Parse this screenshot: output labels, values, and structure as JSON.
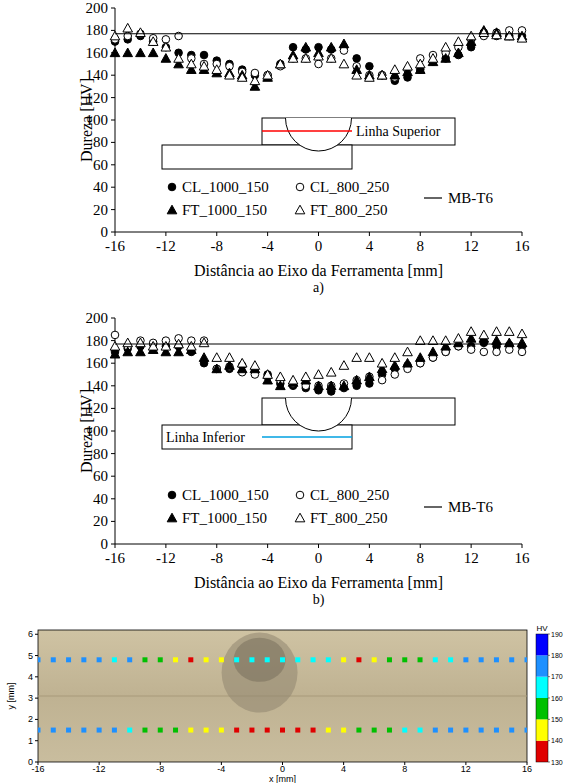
{
  "chart_data": [
    {
      "type": "scatter",
      "panel_label": "a)",
      "inset_label": "Linha Superior",
      "x_label": "Distância ao Eixo da Ferramenta [mm]",
      "y_label": "Dureza [HV]",
      "xlim": [
        -16,
        16
      ],
      "ylim": [
        0,
        200
      ],
      "xticks": [
        -16,
        -12,
        -8,
        -4,
        0,
        4,
        8,
        12,
        16
      ],
      "yticks": [
        0,
        20,
        40,
        60,
        80,
        100,
        120,
        140,
        160,
        180,
        200
      ],
      "grid": false,
      "x": [
        -16,
        -15,
        -14,
        -13,
        -12,
        -11,
        -10,
        -9,
        -8,
        -7,
        -6,
        -5,
        -4,
        -3,
        -2,
        -1,
        0,
        1,
        2,
        3,
        4,
        5,
        6,
        7,
        8,
        9,
        10,
        11,
        12,
        13,
        14,
        15,
        16
      ],
      "series": [
        {
          "name": "CL_1000_150",
          "color": "#000000",
          "marker": "circle",
          "values": [
            170,
            172,
            175,
            170,
            165,
            160,
            158,
            158,
            153,
            150,
            145,
            140,
            140,
            150,
            165,
            163,
            165,
            163,
            165,
            155,
            148,
            140,
            135,
            138,
            145,
            152,
            155,
            158,
            165,
            178,
            175,
            175,
            175
          ]
        },
        {
          "name": "CL_800_250",
          "color": "#000000",
          "marker": "circle-open",
          "values": [
            172,
            175,
            177,
            173,
            172,
            175,
            155,
            150,
            150,
            148,
            143,
            142,
            140,
            148,
            155,
            155,
            150,
            155,
            162,
            148,
            140,
            140,
            138,
            145,
            155,
            158,
            160,
            165,
            172,
            175,
            178,
            180,
            180
          ]
        },
        {
          "name": "FT_1000_150",
          "color": "#000000",
          "marker": "triangle",
          "values": [
            160,
            160,
            160,
            160,
            155,
            150,
            145,
            145,
            142,
            142,
            140,
            130,
            138,
            150,
            158,
            165,
            160,
            165,
            168,
            145,
            140,
            140,
            140,
            143,
            145,
            152,
            155,
            160,
            170,
            180,
            178,
            175,
            175
          ]
        },
        {
          "name": "FT_800_250",
          "color": "#000000",
          "marker": "triangle-open",
          "values": [
            175,
            182,
            178,
            170,
            165,
            155,
            150,
            148,
            145,
            140,
            138,
            135,
            140,
            150,
            155,
            155,
            157,
            155,
            150,
            140,
            138,
            140,
            145,
            148,
            150,
            155,
            165,
            170,
            175,
            178,
            176,
            175,
            173
          ]
        },
        {
          "name": "MB-T6",
          "type": "line",
          "color": "#000000",
          "line_style": "solid",
          "x": [
            -16,
            16
          ],
          "values": [
            177,
            177
          ]
        }
      ]
    },
    {
      "type": "scatter",
      "panel_label": "b)",
      "inset_label": "Linha Inferior",
      "x_label": "Distância ao Eixo da Ferramenta [mm]",
      "y_label": "Dureza [HV]",
      "xlim": [
        -16,
        16
      ],
      "ylim": [
        0,
        200
      ],
      "xticks": [
        -16,
        -12,
        -8,
        -4,
        0,
        4,
        8,
        12,
        16
      ],
      "yticks": [
        0,
        20,
        40,
        60,
        80,
        100,
        120,
        140,
        160,
        180,
        200
      ],
      "grid": false,
      "x": [
        -16,
        -15,
        -14,
        -13,
        -12,
        -11,
        -10,
        -9,
        -8,
        -7,
        -6,
        -5,
        -4,
        -3,
        -2,
        -1,
        0,
        1,
        2,
        3,
        4,
        5,
        6,
        7,
        8,
        9,
        10,
        11,
        12,
        13,
        14,
        15,
        16
      ],
      "series": [
        {
          "name": "CL_1000_150",
          "color": "#000000",
          "marker": "circle",
          "values": [
            170,
            173,
            175,
            177,
            175,
            175,
            170,
            160,
            155,
            155,
            158,
            153,
            150,
            142,
            140,
            138,
            136,
            135,
            138,
            140,
            142,
            150,
            155,
            158,
            160,
            165,
            170,
            175,
            175,
            178,
            175,
            176,
            175
          ]
        },
        {
          "name": "CL_800_250",
          "color": "#000000",
          "marker": "circle-open",
          "values": [
            185,
            175,
            180,
            178,
            180,
            182,
            180,
            180,
            155,
            157,
            152,
            150,
            148,
            145,
            142,
            140,
            140,
            140,
            142,
            145,
            148,
            145,
            150,
            155,
            160,
            165,
            170,
            175,
            172,
            170,
            170,
            172,
            170
          ]
        },
        {
          "name": "FT_1000_150",
          "color": "#000000",
          "marker": "triangle",
          "values": [
            168,
            170,
            170,
            172,
            170,
            170,
            172,
            165,
            155,
            158,
            155,
            155,
            145,
            140,
            143,
            145,
            140,
            140,
            140,
            145,
            148,
            155,
            158,
            160,
            165,
            170,
            175,
            178,
            182,
            182,
            180,
            178,
            178
          ]
        },
        {
          "name": "FT_800_250",
          "color": "#000000",
          "marker": "triangle-open",
          "values": [
            175,
            178,
            178,
            175,
            175,
            177,
            175,
            178,
            165,
            165,
            160,
            158,
            150,
            148,
            145,
            148,
            150,
            152,
            158,
            165,
            165,
            160,
            165,
            170,
            180,
            180,
            180,
            182,
            188,
            185,
            188,
            188,
            186
          ]
        },
        {
          "name": "MB-T6",
          "type": "line",
          "color": "#000000",
          "line_style": "solid",
          "x": [
            -16,
            16
          ],
          "values": [
            177,
            177
          ]
        }
      ]
    },
    {
      "type": "heatmap",
      "x_label": "x [mm]",
      "y_label": "y [mm]",
      "xlim": [
        -16,
        16
      ],
      "ylim": [
        0,
        6.2
      ],
      "xticks": [
        -16,
        -12,
        -8,
        -4,
        0,
        4,
        8,
        12,
        16
      ],
      "yticks": [
        0,
        1,
        2,
        3,
        4,
        5,
        6
      ],
      "x": [
        -16,
        -15,
        -14,
        -13,
        -12,
        -11,
        -10,
        -9,
        -8,
        -7,
        -6,
        -5,
        -4,
        -3,
        -2,
        -1,
        0,
        1,
        2,
        3,
        4,
        5,
        6,
        7,
        8,
        9,
        10,
        11,
        12,
        13,
        14,
        15,
        16
      ],
      "y": [
        4.8,
        1.5
      ],
      "values": [
        [
          175,
          175,
          175,
          175,
          175,
          165,
          175,
          155,
          155,
          145,
          135,
          145,
          145,
          165,
          165,
          165,
          165,
          165,
          165,
          165,
          145,
          135,
          145,
          155,
          155,
          155,
          165,
          165,
          175,
          175,
          175,
          175,
          175
        ],
        [
          175,
          175,
          175,
          175,
          175,
          175,
          165,
          155,
          155,
          155,
          145,
          145,
          145,
          135,
          135,
          135,
          135,
          135,
          135,
          145,
          145,
          155,
          155,
          155,
          165,
          165,
          175,
          175,
          175,
          175,
          175,
          175,
          175
        ]
      ],
      "colorbar": {
        "label": "HV",
        "range": [
          130,
          190
        ],
        "ticks": [
          130,
          140,
          150,
          160,
          170,
          180,
          190
        ],
        "colors": [
          "#e00000",
          "#ffff00",
          "#00c000",
          "#00ffff",
          "#1e90ff",
          "#0000ff"
        ]
      }
    }
  ]
}
